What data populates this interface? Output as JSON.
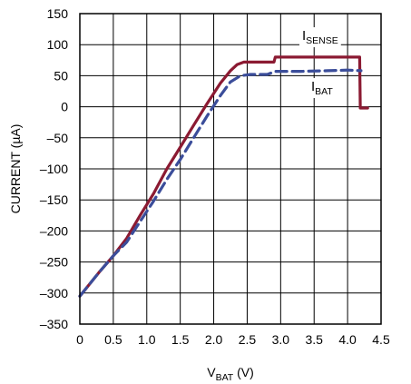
{
  "chart_data": {
    "type": "line",
    "xlabel": {
      "main": "V",
      "sub": "BAT",
      "unit": " (V)"
    },
    "ylabel": "CURRENT (µA)",
    "xlim": [
      0,
      4.5
    ],
    "ylim": [
      -350,
      150
    ],
    "x_ticks": [
      0,
      0.5,
      1.0,
      1.5,
      2.0,
      2.5,
      3.0,
      3.5,
      4.0,
      4.5
    ],
    "x_tick_labels": [
      "0",
      "0.5",
      "1.0",
      "1.5",
      "2.0",
      "2.5",
      "3.0",
      "3.5",
      "4.0",
      "4.5"
    ],
    "y_ticks": [
      -350,
      -300,
      -250,
      -200,
      -150,
      -100,
      -50,
      0,
      50,
      100,
      150
    ],
    "y_tick_labels": [
      "–350",
      "–300",
      "–250",
      "–200",
      "–150",
      "–100",
      "–50",
      "0",
      "50",
      "100",
      "150"
    ],
    "grid": true,
    "series": [
      {
        "name": "I_SENSE",
        "label_main": "I",
        "label_sub": "SENSE",
        "color": "#8b1a32",
        "style": "solid",
        "x": [
          0,
          0.3,
          0.5,
          0.7,
          0.9,
          1.1,
          1.3,
          1.5,
          1.7,
          1.9,
          2.1,
          2.25,
          2.35,
          2.45,
          2.55,
          2.9,
          2.92,
          3.2,
          3.6,
          4.0,
          4.18,
          4.19,
          4.22,
          4.3
        ],
        "values": [
          -305,
          -265,
          -240,
          -212,
          -175,
          -140,
          -100,
          -65,
          -30,
          5,
          38,
          58,
          68,
          72,
          72,
          72,
          80,
          80,
          80,
          80,
          80,
          -2,
          -2,
          -2
        ]
      },
      {
        "name": "I_BAT",
        "label_main": "I",
        "label_sub": "BAT",
        "color": "#3b4d9a",
        "style": "dashed",
        "x": [
          0,
          0.3,
          0.5,
          0.7,
          0.9,
          1.1,
          1.3,
          1.5,
          1.7,
          1.9,
          2.1,
          2.25,
          2.4,
          2.55,
          2.8,
          2.92,
          3.3,
          3.7,
          4.0,
          4.2
        ],
        "values": [
          -305,
          -265,
          -240,
          -218,
          -185,
          -152,
          -117,
          -85,
          -50,
          -15,
          18,
          40,
          50,
          52,
          52,
          57,
          57,
          58,
          59,
          58
        ]
      }
    ]
  }
}
